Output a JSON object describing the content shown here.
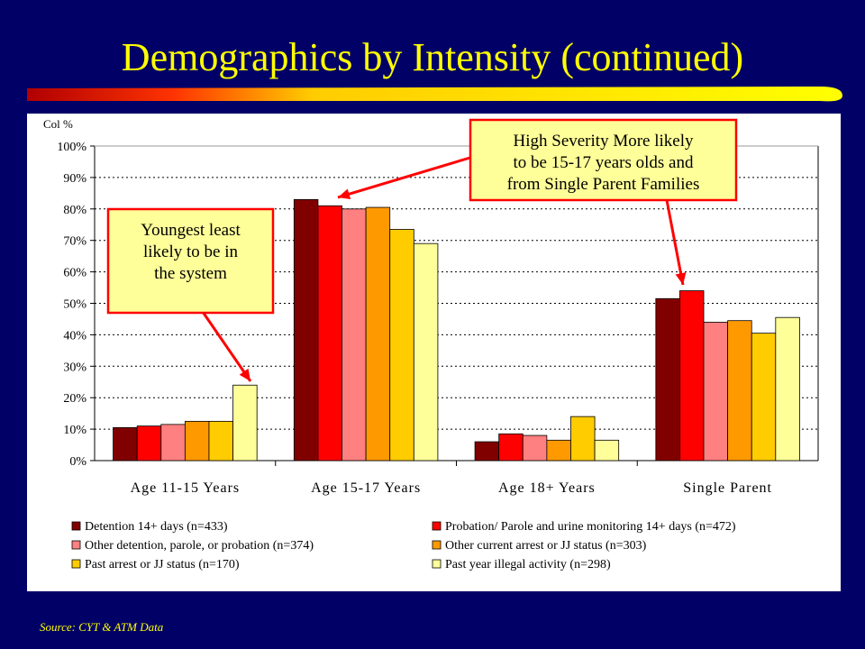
{
  "slide": {
    "title": "Demographics by Intensity (continued)",
    "source": "Source: CYT & ATM Data"
  },
  "callouts": {
    "left": [
      "Youngest least",
      "likely to be in",
      "the system"
    ],
    "right": [
      "High Severity More likely",
      "to be 15-17 years olds and",
      "from Single Parent Families"
    ]
  },
  "chart_data": {
    "type": "bar",
    "title": "",
    "ylabel": "Col %",
    "xlabel": "",
    "ylim": [
      0,
      100
    ],
    "yticks": [
      "0%",
      "10%",
      "20%",
      "30%",
      "40%",
      "50%",
      "60%",
      "70%",
      "80%",
      "90%",
      "100%"
    ],
    "grid": true,
    "legend": "bottom",
    "categories": [
      "Age 11-15 Years",
      "Age 15-17 Years",
      "Age 18+ Years",
      "Single Parent"
    ],
    "series": [
      {
        "name": "Detention 14+ days (n=433)",
        "color": "#800000",
        "values": [
          10.5,
          83,
          6,
          51.5
        ]
      },
      {
        "name": "Probation/ Parole and urine monitoring 14+ days (n=472)",
        "color": "#ff0000",
        "values": [
          11,
          81,
          8.5,
          54
        ]
      },
      {
        "name": "Other detention, parole, or probation (n=374)",
        "color": "#ff8080",
        "values": [
          11.5,
          80,
          8,
          44
        ]
      },
      {
        "name": "Other current arrest or JJ status (n=303)",
        "color": "#ff9900",
        "values": [
          12.5,
          80.5,
          6.5,
          44.5
        ]
      },
      {
        "name": "Past arrest or JJ status (n=170)",
        "color": "#ffcc00",
        "values": [
          12.5,
          73.5,
          14,
          40.5
        ]
      },
      {
        "name": "Past year illegal activity  (n=298)",
        "color": "#ffff99",
        "values": [
          24,
          69,
          6.5,
          45.5
        ]
      }
    ]
  }
}
